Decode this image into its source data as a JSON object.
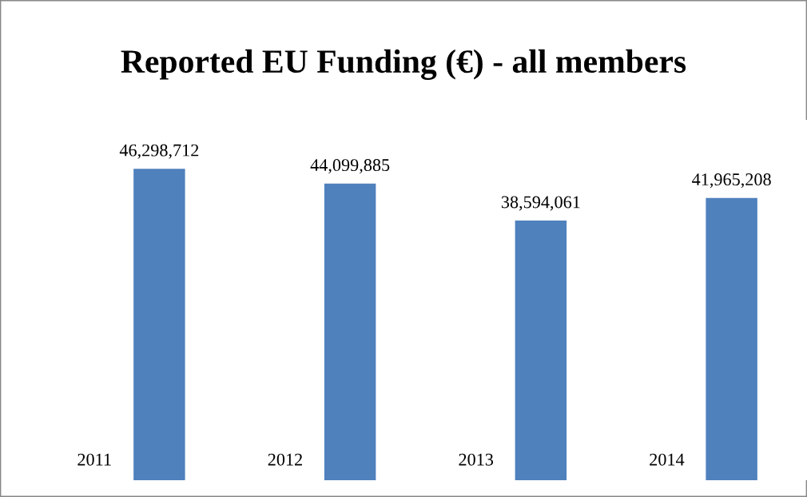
{
  "chart_data": {
    "type": "bar",
    "title": "Reported EU Funding (€) - all members",
    "categories": [
      "2011",
      "2012",
      "2013",
      "2014"
    ],
    "values": [
      46298712,
      44099885,
      38594061,
      41965208
    ],
    "value_labels": [
      "46,298,712",
      "44,099,885",
      "38,594,061",
      "41,965,208"
    ],
    "color": "#4f81bd"
  }
}
